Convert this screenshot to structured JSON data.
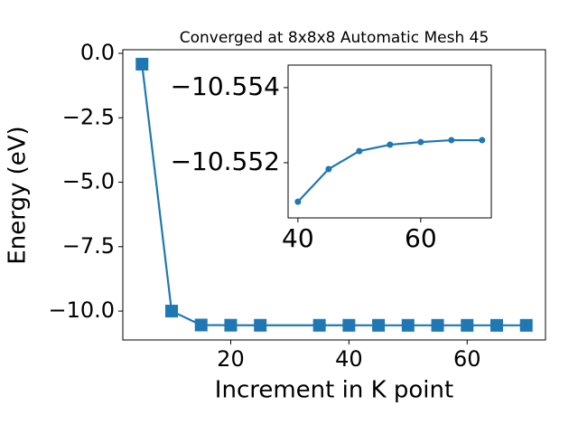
{
  "chart_data": [
    {
      "type": "line",
      "title": "Converged at 8x8x8 Automatic Mesh 45",
      "x_label": "Increment in K point",
      "y_label": "Energy (eV)",
      "x": [
        5,
        10,
        15,
        20,
        25,
        35,
        40,
        45,
        50,
        55,
        60,
        65,
        70
      ],
      "series": [
        {
          "color": "#1f77b4",
          "marker": "square",
          "values": [
            -0.42,
            -10.0,
            -10.54,
            -10.548,
            -10.55,
            -10.5505,
            -10.55096,
            -10.55183,
            -10.55231,
            -10.55248,
            -10.55255,
            -10.5526,
            -10.5526
          ]
        }
      ],
      "xlim": [
        1.75,
        73.25
      ],
      "ylim": [
        -11.12,
        0.14
      ],
      "xticks": [
        20,
        40,
        60
      ],
      "yticks": [
        {
          "value": 0,
          "label": "0.0"
        },
        {
          "value": -2.5,
          "label": "−2.5"
        },
        {
          "value": -5,
          "label": "−5.0"
        },
        {
          "value": -7.5,
          "label": "−7.5"
        },
        {
          "value": -10,
          "label": "−10.0"
        }
      ]
    },
    {
      "type": "line",
      "x": [
        40,
        45,
        50,
        55,
        60,
        65,
        70
      ],
      "series": [
        {
          "color": "#1f77b4",
          "marker": "circle",
          "values": [
            -10.55096,
            -10.55183,
            -10.55231,
            -10.55248,
            -10.55255,
            -10.5526,
            -10.5526
          ]
        }
      ],
      "xlim": [
        38.4,
        71.5
      ],
      "ylim": [
        -10.55053,
        -10.5546
      ],
      "xticks": [
        40,
        60
      ],
      "yticks": [
        {
          "value": -10.554,
          "label": "−10.554"
        },
        {
          "value": -10.552,
          "label": "−10.552"
        }
      ]
    }
  ]
}
